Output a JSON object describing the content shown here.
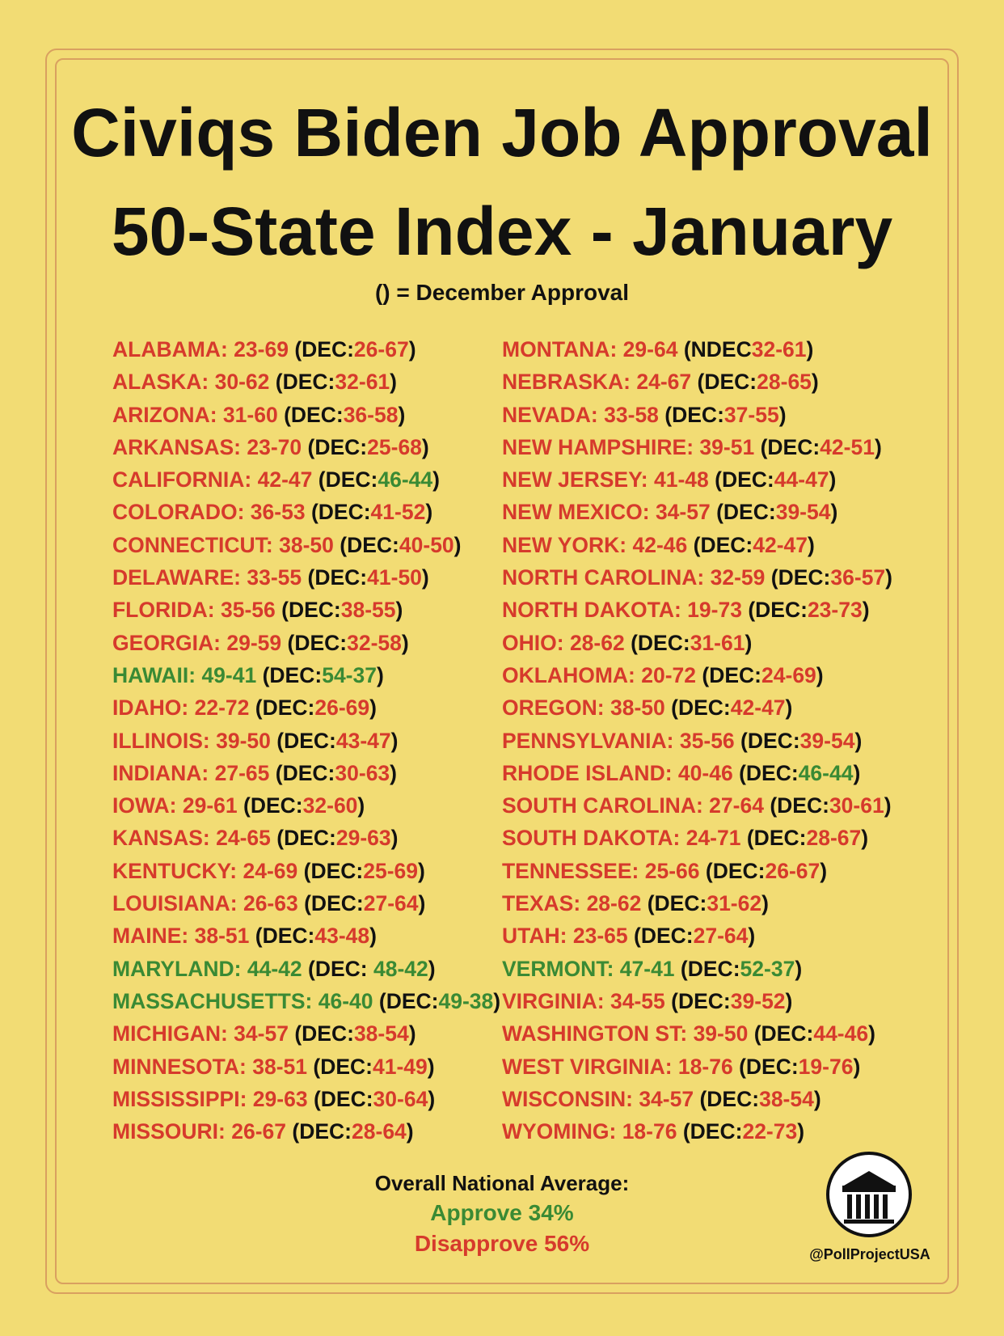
{
  "header": {
    "title_line1": "Civiqs Biden Job Approval",
    "title_line2": "50-State Index - January",
    "subtitle": "() = December Approval"
  },
  "colors": {
    "background": "#f2dc74",
    "disapprove_red": "#d63a2c",
    "approve_green": "#3a8a34",
    "text_black": "#111111",
    "frame": "#d9a060"
  },
  "states_left": [
    {
      "name": "ALABAMA:",
      "jan": "23-69",
      "jan_color": "red",
      "prefix": "(DEC:",
      "dec": "26-67",
      "dec_color": "red"
    },
    {
      "name": "ALASKA:",
      "jan": "30-62",
      "jan_color": "red",
      "prefix": "(DEC:",
      "dec": "32-61",
      "dec_color": "red"
    },
    {
      "name": "ARIZONA:",
      "jan": "31-60",
      "jan_color": "red",
      "prefix": "(DEC:",
      "dec": "36-58",
      "dec_color": "red"
    },
    {
      "name": "ARKANSAS:",
      "jan": "23-70",
      "jan_color": "red",
      "prefix": "(DEC:",
      "dec": "25-68",
      "dec_color": "red"
    },
    {
      "name": "CALIFORNIA:",
      "jan": "42-47",
      "jan_color": "red",
      "prefix": "(DEC:",
      "dec": "46-44",
      "dec_color": "green"
    },
    {
      "name": "COLORADO:",
      "jan": "36-53",
      "jan_color": "red",
      "prefix": "(DEC:",
      "dec": "41-52",
      "dec_color": "red"
    },
    {
      "name": "CONNECTICUT:",
      "jan": "38-50",
      "jan_color": "red",
      "prefix": "(DEC:",
      "dec": "40-50",
      "dec_color": "red"
    },
    {
      "name": "DELAWARE:",
      "jan": "33-55",
      "jan_color": "red",
      "prefix": "(DEC:",
      "dec": "41-50",
      "dec_color": "red"
    },
    {
      "name": "FLORIDA:",
      "jan": "35-56",
      "jan_color": "red",
      "prefix": "(DEC:",
      "dec": "38-55",
      "dec_color": "red"
    },
    {
      "name": "GEORGIA:",
      "jan": "29-59",
      "jan_color": "red",
      "prefix": "(DEC:",
      "dec": "32-58",
      "dec_color": "red"
    },
    {
      "name": "HAWAII:",
      "jan": "49-41",
      "jan_color": "green",
      "prefix": "(DEC:",
      "dec": "54-37",
      "dec_color": "green"
    },
    {
      "name": "IDAHO:",
      "jan": "22-72",
      "jan_color": "red",
      "prefix": "(DEC:",
      "dec": "26-69",
      "dec_color": "red"
    },
    {
      "name": "ILLINOIS:",
      "jan": "39-50",
      "jan_color": "red",
      "prefix": "(DEC:",
      "dec": "43-47",
      "dec_color": "red"
    },
    {
      "name": "INDIANA:",
      "jan": "27-65",
      "jan_color": "red",
      "prefix": "(DEC:",
      "dec": "30-63",
      "dec_color": "red"
    },
    {
      "name": "IOWA:",
      "jan": "29-61",
      "jan_color": "red",
      "prefix": "(DEC:",
      "dec": "32-60",
      "dec_color": "red"
    },
    {
      "name": "KANSAS:",
      "jan": "24-65",
      "jan_color": "red",
      "prefix": "(DEC:",
      "dec": "29-63",
      "dec_color": "red"
    },
    {
      "name": "KENTUCKY:",
      "jan": "24-69",
      "jan_color": "red",
      "prefix": "(DEC:",
      "dec": "25-69",
      "dec_color": "red"
    },
    {
      "name": "LOUISIANA:",
      "jan": "26-63",
      "jan_color": "red",
      "prefix": "(DEC:",
      "dec": "27-64",
      "dec_color": "red"
    },
    {
      "name": "MAINE:",
      "jan": "38-51",
      "jan_color": "red",
      "prefix": "(DEC:",
      "dec": "43-48",
      "dec_color": "red"
    },
    {
      "name": "MARYLAND:",
      "jan": "44-42",
      "jan_color": "green",
      "prefix": "(DEC: ",
      "dec": "48-42",
      "dec_color": "green"
    },
    {
      "name": "MASSACHUSETTS:",
      "jan": "46-40",
      "jan_color": "green",
      "prefix": "(DEC:",
      "dec": "49-38",
      "dec_color": "green"
    },
    {
      "name": "MICHIGAN:",
      "jan": "34-57",
      "jan_color": "red",
      "prefix": "(DEC:",
      "dec": "38-54",
      "dec_color": "red"
    },
    {
      "name": "MINNESOTA:",
      "jan": "38-51",
      "jan_color": "red",
      "prefix": "(DEC:",
      "dec": "41-49",
      "dec_color": "red"
    },
    {
      "name": "MISSISSIPPI:",
      "jan": "29-63",
      "jan_color": "red",
      "prefix": "(DEC:",
      "dec": "30-64",
      "dec_color": "red"
    },
    {
      "name": "MISSOURI:",
      "jan": "26-67",
      "jan_color": "red",
      "prefix": "(DEC:",
      "dec": "28-64",
      "dec_color": "red"
    }
  ],
  "states_right": [
    {
      "name": "MONTANA:",
      "jan": "29-64",
      "jan_color": "red",
      "prefix": "(NDEC",
      "dec": "32-61",
      "dec_color": "red"
    },
    {
      "name": "NEBRASKA:",
      "jan": "24-67",
      "jan_color": "red",
      "prefix": "(DEC:",
      "dec": "28-65",
      "dec_color": "red"
    },
    {
      "name": "NEVADA:",
      "jan": "33-58",
      "jan_color": "red",
      "prefix": "(DEC:",
      "dec": "37-55",
      "dec_color": "red"
    },
    {
      "name": "NEW HAMPSHIRE:",
      "jan": "39-51",
      "jan_color": "red",
      "prefix": "(DEC:",
      "dec": "42-51",
      "dec_color": "red"
    },
    {
      "name": "NEW JERSEY:",
      "jan": "41-48",
      "jan_color": "red",
      "prefix": "(DEC:",
      "dec": "44-47",
      "dec_color": "red"
    },
    {
      "name": "NEW MEXICO:",
      "jan": "34-57",
      "jan_color": "red",
      "prefix": "(DEC:",
      "dec": "39-54",
      "dec_color": "red"
    },
    {
      "name": "NEW YORK:",
      "jan": "42-46",
      "jan_color": "red",
      "prefix": "(DEC:",
      "dec": "42-47",
      "dec_color": "red"
    },
    {
      "name": "NORTH CAROLINA:",
      "jan": "32-59",
      "jan_color": "red",
      "prefix": "(DEC:",
      "dec": "36-57",
      "dec_color": "red"
    },
    {
      "name": "NORTH DAKOTA:",
      "jan": "19-73",
      "jan_color": "red",
      "prefix": "(DEC:",
      "dec": "23-73",
      "dec_color": "red"
    },
    {
      "name": "OHIO:",
      "jan": "28-62",
      "jan_color": "red",
      "prefix": "(DEC:",
      "dec": "31-61",
      "dec_color": "red"
    },
    {
      "name": "OKLAHOMA:",
      "jan": "20-72",
      "jan_color": "red",
      "prefix": "(DEC:",
      "dec": "24-69",
      "dec_color": "red"
    },
    {
      "name": "OREGON:",
      "jan": "38-50",
      "jan_color": "red",
      "prefix": "(DEC:",
      "dec": "42-47",
      "dec_color": "red"
    },
    {
      "name": "PENNSYLVANIA:",
      "jan": "35-56",
      "jan_color": "red",
      "prefix": "(DEC:",
      "dec": "39-54",
      "dec_color": "red"
    },
    {
      "name": "RHODE ISLAND:",
      "jan": "40-46",
      "jan_color": "red",
      "prefix": "(DEC:",
      "dec": "46-44",
      "dec_color": "green"
    },
    {
      "name": "SOUTH CAROLINA:",
      "jan": "27-64",
      "jan_color": "red",
      "prefix": "(DEC:",
      "dec": "30-61",
      "dec_color": "red"
    },
    {
      "name": "SOUTH DAKOTA:",
      "jan": "24-71",
      "jan_color": "red",
      "prefix": "(DEC:",
      "dec": "28-67",
      "dec_color": "red"
    },
    {
      "name": "TENNESSEE:",
      "jan": "25-66",
      "jan_color": "red",
      "prefix": "(DEC:",
      "dec": "26-67",
      "dec_color": "red"
    },
    {
      "name": "TEXAS:",
      "jan": "28-62",
      "jan_color": "red",
      "prefix": "(DEC:",
      "dec": "31-62",
      "dec_color": "red"
    },
    {
      "name": "UTAH:",
      "jan": "23-65",
      "jan_color": "red",
      "prefix": "(DEC:",
      "dec": "27-64",
      "dec_color": "red"
    },
    {
      "name": "VERMONT:",
      "jan": "47-41",
      "jan_color": "green",
      "prefix": "(DEC:",
      "dec": "52-37",
      "dec_color": "green"
    },
    {
      "name": "VIRGINIA:",
      "jan": "34-55",
      "jan_color": "red",
      "prefix": "(DEC:",
      "dec": "39-52",
      "dec_color": "red"
    },
    {
      "name": "WASHINGTON ST:",
      "jan": "39-50",
      "jan_color": "red",
      "prefix": "(DEC:",
      "dec": "44-46",
      "dec_color": "red"
    },
    {
      "name": "WEST VIRGINIA:",
      "jan": "18-76",
      "jan_color": "red",
      "prefix": "(DEC:",
      "dec": "19-76",
      "dec_color": "red"
    },
    {
      "name": "WISCONSIN:",
      "jan": "34-57",
      "jan_color": "red",
      "prefix": "(DEC:",
      "dec": "38-54",
      "dec_color": "red"
    },
    {
      "name": "WYOMING:",
      "jan": "18-76",
      "jan_color": "red",
      "prefix": "(DEC:",
      "dec": "22-73",
      "dec_color": "red"
    }
  ],
  "summary": {
    "heading": "Overall National Average:",
    "approve": "Approve 34%",
    "disapprove": "Disapprove 56%"
  },
  "logo": {
    "icon": "building-columns-icon",
    "handle": "@PollProjectUSA"
  }
}
